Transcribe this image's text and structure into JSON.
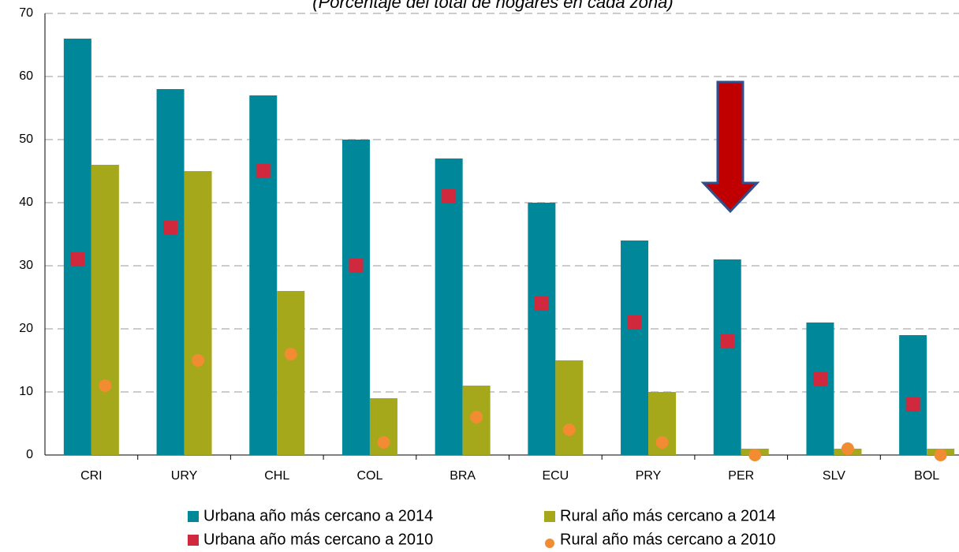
{
  "chart_data": {
    "type": "bar",
    "subtitle": "(Porcentaje del total de hogares en cada zona)",
    "categories": [
      "CRI",
      "URY",
      "CHL",
      "COL",
      "BRA",
      "ECU",
      "PRY",
      "PER",
      "SLV",
      "BOL"
    ],
    "series": [
      {
        "name": "Urbana año más cercano a 2014",
        "color": "#00889a",
        "mark": "bar",
        "group": 0,
        "values": [
          66,
          58,
          57,
          50,
          47,
          40,
          34,
          31,
          21,
          19
        ]
      },
      {
        "name": "Rural año más cercano a 2014",
        "color": "#a5a81a",
        "mark": "bar",
        "group": 1,
        "values": [
          46,
          45,
          26,
          9,
          11,
          15,
          10,
          1,
          1,
          1
        ]
      },
      {
        "name": "Urbana año más cercano a 2010",
        "color": "#d0283c",
        "mark": "square",
        "group": 0,
        "values": [
          31,
          36,
          45,
          30,
          41,
          24,
          21,
          18,
          12,
          8
        ]
      },
      {
        "name": "Rural año más cercano a 2010",
        "color": "#f28c32",
        "mark": "circle",
        "group": 1,
        "values": [
          11,
          15,
          16,
          2,
          6,
          4,
          2,
          0,
          1,
          0
        ]
      }
    ],
    "ylim": [
      0,
      70
    ],
    "yticks": [
      0,
      10,
      20,
      30,
      40,
      50,
      60,
      70
    ],
    "grid": true,
    "legend": "bottom"
  }
}
